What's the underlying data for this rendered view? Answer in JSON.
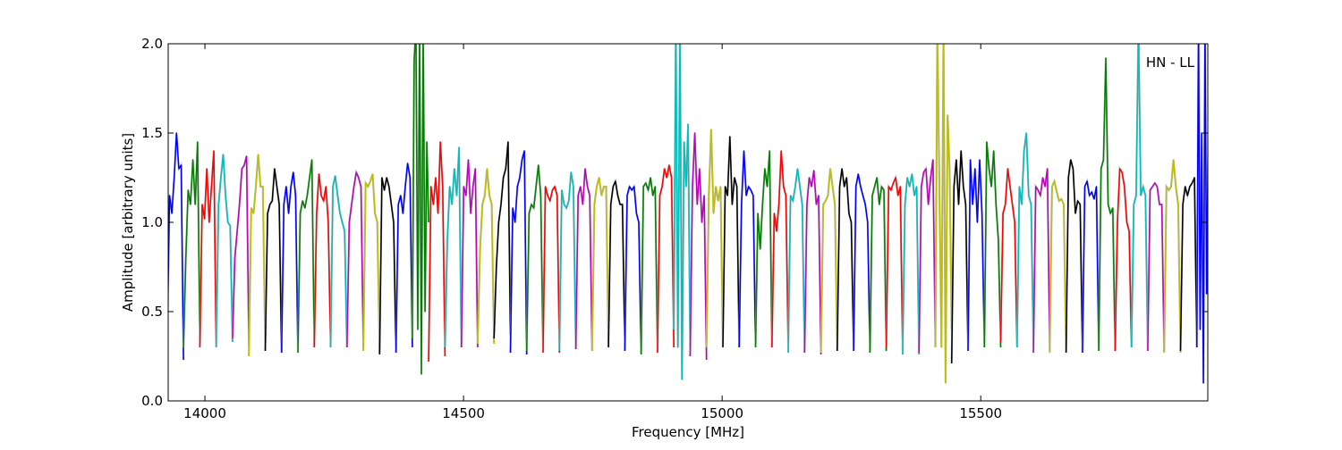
{
  "chart_data": {
    "type": "line",
    "title": "",
    "xlabel": "Frequency [MHz]",
    "ylabel": "Amplitude [arbitrary units]",
    "xlim": [
      13929,
      15939
    ],
    "ylim": [
      0.0,
      2.0
    ],
    "x_ticks": [
      14000,
      14500,
      15000,
      15500
    ],
    "x_tick_labels": [
      "14000",
      "14500",
      "15000",
      "15500"
    ],
    "y_ticks": [
      0.0,
      0.5,
      1.0,
      1.5,
      2.0
    ],
    "y_tick_labels": [
      "0.0",
      "0.5",
      "1.0",
      "1.5",
      "2.0"
    ],
    "grid": false,
    "annotation": "HN - LL",
    "annotation_placement": "top-right",
    "color_cycle": [
      "#0000ff",
      "#008000",
      "#ff0000",
      "#00bfbf",
      "#bf00bf",
      "#bfbf00",
      "#000000"
    ],
    "segment_start_mhz": 13927,
    "segment_width_mhz": 31.6,
    "segments": [
      [
        0.3,
        1.15,
        1.05,
        1.25,
        1.5,
        1.3,
        1.32,
        0.23
      ],
      [
        0.3,
        0.8,
        1.18,
        1.1,
        1.35,
        1.1,
        1.45,
        0.35
      ],
      [
        0.3,
        1.1,
        1.02,
        1.3,
        1.0,
        1.2,
        1.4,
        0.3
      ],
      [
        0.3,
        1.1,
        1.25,
        1.38,
        1.15,
        1.0,
        0.98,
        0.33
      ],
      [
        0.35,
        0.8,
        0.95,
        1.1,
        1.3,
        1.32,
        1.37,
        0.3
      ],
      [
        0.25,
        1.08,
        1.05,
        1.2,
        1.38,
        1.2,
        1.2,
        0.28
      ],
      [
        0.28,
        1.05,
        1.1,
        1.12,
        1.3,
        1.2,
        1.1,
        0.27
      ],
      [
        0.27,
        1.1,
        1.2,
        1.05,
        1.2,
        1.28,
        1.15,
        0.27
      ],
      [
        0.27,
        1.05,
        1.12,
        1.08,
        1.15,
        1.25,
        1.35,
        0.3
      ],
      [
        0.3,
        1.05,
        1.27,
        1.15,
        1.12,
        1.2,
        1.0,
        0.3
      ],
      [
        0.3,
        1.2,
        1.26,
        1.15,
        1.05,
        1.0,
        0.95,
        0.3
      ],
      [
        0.3,
        1.0,
        1.1,
        1.2,
        1.28,
        1.25,
        1.2,
        0.3
      ],
      [
        0.28,
        1.22,
        1.2,
        1.23,
        1.27,
        1.05,
        1.0,
        0.27
      ],
      [
        0.26,
        1.25,
        1.18,
        1.25,
        1.2,
        1.1,
        1.0,
        0.27
      ],
      [
        0.27,
        1.1,
        1.15,
        1.05,
        1.2,
        1.33,
        1.25,
        0.3
      ],
      [
        0.35,
        1.9,
        2.1,
        0.4,
        2.1,
        0.15,
        2.1,
        0.5,
        1.45,
        1.0
      ],
      [
        0.22,
        1.2,
        1.1,
        1.25,
        1.05,
        1.45,
        1.2,
        0.25
      ],
      [
        0.3,
        0.9,
        1.2,
        1.1,
        1.3,
        1.15,
        1.42,
        0.3
      ],
      [
        0.3,
        1.2,
        1.15,
        1.35,
        1.05,
        1.2,
        1.3,
        0.3
      ],
      [
        0.32,
        0.85,
        1.1,
        1.15,
        1.3,
        1.15,
        1.1,
        0.32
      ],
      [
        0.35,
        0.75,
        1.0,
        1.1,
        1.25,
        1.3,
        1.45,
        0.37
      ],
      [
        0.27,
        1.08,
        1.0,
        1.2,
        1.25,
        1.35,
        1.4,
        0.26
      ],
      [
        0.28,
        1.05,
        1.1,
        1.08,
        1.2,
        1.32,
        1.15,
        0.27
      ],
      [
        0.27,
        1.2,
        1.15,
        1.12,
        1.18,
        1.2,
        1.15,
        0.27
      ],
      [
        0.28,
        1.18,
        1.1,
        1.08,
        1.12,
        1.28,
        1.2,
        0.29
      ],
      [
        0.29,
        1.15,
        1.2,
        1.1,
        1.3,
        1.2,
        1.15,
        0.28
      ],
      [
        0.28,
        1.1,
        1.2,
        1.25,
        1.15,
        1.2,
        1.2,
        0.3
      ],
      [
        0.3,
        1.1,
        1.2,
        1.23,
        1.15,
        1.1,
        1.1,
        0.3
      ],
      [
        0.28,
        1.15,
        1.2,
        1.18,
        1.2,
        1.05,
        1.0,
        0.26
      ],
      [
        0.26,
        1.2,
        1.22,
        1.18,
        1.25,
        1.15,
        1.2,
        0.27
      ],
      [
        0.27,
        1.15,
        1.2,
        1.3,
        1.25,
        1.32,
        1.25,
        0.3
      ],
      [
        0.4,
        2.1,
        0.3,
        2.1,
        0.12,
        1.45,
        1.2,
        1.55,
        0.3
      ],
      [
        0.25,
        1.2,
        1.5,
        1.1,
        1.3,
        1.0,
        1.15,
        0.23
      ],
      [
        0.3,
        1.15,
        1.52,
        1.05,
        1.2,
        1.12,
        1.2,
        0.3
      ],
      [
        0.3,
        1.2,
        1.15,
        1.48,
        1.1,
        1.25,
        1.2,
        0.3
      ],
      [
        0.3,
        1.1,
        1.4,
        1.15,
        1.2,
        1.18,
        1.15,
        0.3
      ],
      [
        0.3,
        1.05,
        0.85,
        1.1,
        1.3,
        1.2,
        1.4,
        0.3
      ],
      [
        0.3,
        1.05,
        0.95,
        1.1,
        1.4,
        1.2,
        1.15,
        0.3
      ],
      [
        0.27,
        1.15,
        1.12,
        1.2,
        1.3,
        1.2,
        1.1,
        0.27
      ],
      [
        0.27,
        1.1,
        1.25,
        1.2,
        1.29,
        1.1,
        1.15,
        0.26
      ],
      [
        0.27,
        1.1,
        1.12,
        1.15,
        1.3,
        1.2,
        1.1,
        0.28
      ],
      [
        0.28,
        1.2,
        1.3,
        1.2,
        1.25,
        1.05,
        1.0,
        0.28
      ],
      [
        0.28,
        1.2,
        1.27,
        1.2,
        1.15,
        1.1,
        1.0,
        0.27
      ],
      [
        0.27,
        1.15,
        1.2,
        1.25,
        1.1,
        1.2,
        1.18,
        0.28
      ],
      [
        0.3,
        1.2,
        1.18,
        1.22,
        1.25,
        1.15,
        1.2,
        0.29
      ],
      [
        0.26,
        1.1,
        1.25,
        1.2,
        1.27,
        1.15,
        1.2,
        0.26
      ],
      [
        0.27,
        1.2,
        1.28,
        1.3,
        1.1,
        1.25,
        1.35,
        0.3
      ],
      [
        0.3,
        2.1,
        1.2,
        0.3,
        2.1,
        0.1,
        1.6,
        1.3,
        0.4
      ],
      [
        0.21,
        1.2,
        1.35,
        1.1,
        1.4,
        1.2,
        1.1,
        0.28
      ],
      [
        0.28,
        1.35,
        1.1,
        1.3,
        1.0,
        1.35,
        1.05,
        0.3
      ],
      [
        0.3,
        1.45,
        1.3,
        1.2,
        1.4,
        1.1,
        0.9,
        0.3
      ],
      [
        0.33,
        1.05,
        1.1,
        1.3,
        1.2,
        1.1,
        1.0,
        0.3
      ],
      [
        0.3,
        1.2,
        1.1,
        1.4,
        1.5,
        1.15,
        1.1,
        0.3
      ],
      [
        0.27,
        1.2,
        1.18,
        1.15,
        1.25,
        1.2,
        1.3,
        0.29
      ],
      [
        0.27,
        1.2,
        1.23,
        1.17,
        1.12,
        1.13,
        1.1,
        0.27
      ],
      [
        0.27,
        1.25,
        1.35,
        1.3,
        1.05,
        1.12,
        1.1,
        0.27
      ],
      [
        0.27,
        1.2,
        1.23,
        1.15,
        1.17,
        1.13,
        1.2,
        0.28
      ],
      [
        0.28,
        1.3,
        1.35,
        1.92,
        1.1,
        1.05,
        1.08,
        0.28
      ],
      [
        0.28,
        1.0,
        1.3,
        1.28,
        1.2,
        1.0,
        0.95,
        0.3
      ],
      [
        0.3,
        1.1,
        1.15,
        2.1,
        1.15,
        1.2,
        1.15,
        0.3
      ],
      [
        0.28,
        1.18,
        1.2,
        1.22,
        1.2,
        1.1,
        1.1,
        0.28
      ],
      [
        0.27,
        1.2,
        1.18,
        1.2,
        1.35,
        1.2,
        1.1,
        0.27
      ],
      [
        0.28,
        1.1,
        1.2,
        1.15,
        1.2,
        1.22,
        1.25,
        0.3
      ],
      [
        0.3,
        2.1,
        0.4,
        1.5,
        0.1,
        2.1,
        0.6,
        1.5,
        1.0,
        1.45,
        0.95
      ]
    ]
  }
}
